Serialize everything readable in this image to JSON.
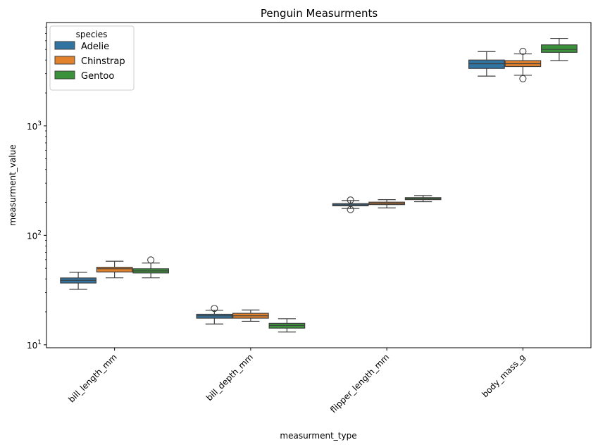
{
  "chart_data": {
    "type": "box",
    "title": "Penguin Measurments",
    "xlabel": "measurment_type",
    "ylabel": "measurment_value",
    "yscale": "log",
    "ylim": [
      9.4,
      8800
    ],
    "y_ticks": [
      {
        "value": 10,
        "base": "10",
        "exp": "1"
      },
      {
        "value": 100,
        "base": "10",
        "exp": "2"
      },
      {
        "value": 1000,
        "base": "10",
        "exp": "3"
      }
    ],
    "categories": [
      "bill_length_mm",
      "bill_depth_mm",
      "flipper_length_mm",
      "body_mass_g"
    ],
    "legend": {
      "title": "species",
      "position": "upper-left"
    },
    "series": [
      {
        "name": "Adelie",
        "color": "#3274a1",
        "boxes": [
          {
            "whislo": 32.1,
            "q1": 36.7,
            "med": 38.8,
            "q3": 40.8,
            "whishi": 46.0,
            "fliers": []
          },
          {
            "whislo": 15.5,
            "q1": 17.5,
            "med": 18.4,
            "q3": 19.0,
            "whishi": 20.7,
            "fliers": [
              21.5
            ]
          },
          {
            "whislo": 176,
            "q1": 186,
            "med": 190,
            "q3": 195,
            "whishi": 208,
            "fliers": [
              172,
              210
            ]
          },
          {
            "whislo": 2850,
            "q1": 3350,
            "med": 3700,
            "q3": 4000,
            "whishi": 4775,
            "fliers": []
          }
        ]
      },
      {
        "name": "Chinstrap",
        "color": "#e1812c",
        "boxes": [
          {
            "whislo": 40.9,
            "q1": 46.3,
            "med": 49.5,
            "q3": 51.1,
            "whishi": 58.0,
            "fliers": []
          },
          {
            "whislo": 16.4,
            "q1": 17.5,
            "med": 18.4,
            "q3": 19.4,
            "whishi": 20.8,
            "fliers": []
          },
          {
            "whislo": 178,
            "q1": 191,
            "med": 196,
            "q3": 201,
            "whishi": 212,
            "fliers": []
          },
          {
            "whislo": 2900,
            "q1": 3487,
            "med": 3700,
            "q3": 3950,
            "whishi": 4550,
            "fliers": [
              2700,
              4800
            ]
          }
        ]
      },
      {
        "name": "Gentoo",
        "color": "#3a923a",
        "boxes": [
          {
            "whislo": 40.9,
            "q1": 45.3,
            "med": 47.3,
            "q3": 49.5,
            "whishi": 55.9,
            "fliers": [
              59.6
            ]
          },
          {
            "whislo": 13.1,
            "q1": 14.2,
            "med": 15.0,
            "q3": 15.7,
            "whishi": 17.3,
            "fliers": []
          },
          {
            "whislo": 203,
            "q1": 212,
            "med": 216,
            "q3": 221,
            "whishi": 231,
            "fliers": []
          },
          {
            "whislo": 3950,
            "q1": 4700,
            "med": 5000,
            "q3": 5500,
            "whishi": 6300,
            "fliers": []
          }
        ]
      }
    ]
  }
}
